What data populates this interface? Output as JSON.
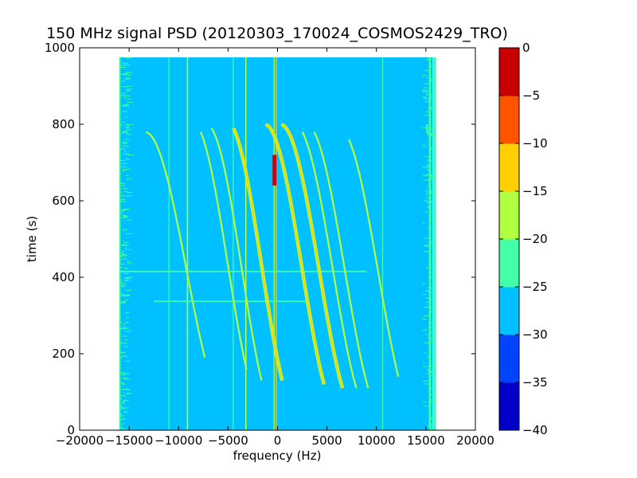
{
  "chart_data": {
    "type": "heatmap",
    "title": "150 MHz signal PSD (20120303_170024_COSMOS2429_TRO)",
    "xlabel": "frequency (Hz)",
    "ylabel": "time (s)",
    "xlim": [
      -20000,
      20000
    ],
    "ylim": [
      0,
      1000
    ],
    "xticks": [
      -20000,
      -15000,
      -10000,
      -5000,
      0,
      5000,
      10000,
      15000,
      20000
    ],
    "xtick_labels": [
      "−20000",
      "−15000",
      "−10000",
      "−5000",
      "0",
      "5000",
      "10000",
      "15000",
      "20000"
    ],
    "yticks": [
      0,
      200,
      400,
      600,
      800,
      1000
    ],
    "ytick_labels": [
      "0",
      "200",
      "400",
      "600",
      "800",
      "1000"
    ],
    "data_extent": {
      "x": [
        -16000,
        16000
      ],
      "y": [
        0,
        975
      ]
    },
    "background_level": -27.5,
    "colorbar": {
      "levels": [
        -40,
        -35,
        -30,
        -25,
        -20,
        -15,
        -10,
        -5,
        0
      ],
      "tick_labels": [
        "−40",
        "−35",
        "−30",
        "−25",
        "−20",
        "−15",
        "−10",
        "−5",
        "0"
      ],
      "colors": [
        "#0000c8",
        "#0044ff",
        "#00c0ff",
        "#44ffaa",
        "#b0ff40",
        "#ffd000",
        "#ff5500",
        "#c80000"
      ]
    },
    "vertical_lines": [
      {
        "freq": -15950,
        "width": 180,
        "level": -22.5
      },
      {
        "freq": -11000,
        "width": 40,
        "level": -22.5
      },
      {
        "freq": -9100,
        "width": 130,
        "level": -17.5
      },
      {
        "freq": -4500,
        "width": 40,
        "level": -22.5
      },
      {
        "freq": -3200,
        "width": 130,
        "level": -17.5
      },
      {
        "freq": -350,
        "width": 90,
        "level": -17.5
      },
      {
        "freq": -150,
        "width": 50,
        "level": -12.5
      },
      {
        "freq": 10600,
        "width": 40,
        "level": -22.5
      },
      {
        "freq": 15400,
        "width": 200,
        "level": -22.5
      },
      {
        "freq": 15800,
        "width": 300,
        "level": -22.5
      }
    ],
    "horizontal_streaks": [
      {
        "time": 415,
        "from": -16000,
        "to": 9000,
        "level": -22.5
      },
      {
        "time": 337,
        "from": -12500,
        "to": 3000,
        "level": -22.5
      }
    ],
    "tracks": [
      {
        "center_freq": -17500,
        "amplitude": 4700,
        "t_mid": 420,
        "half_span": 360,
        "t_start": 380,
        "t_end": 800,
        "level": -22.5
      },
      {
        "center_freq": -9200,
        "amplitude": 4200,
        "t_mid": 420,
        "half_span": 360,
        "t_start": 190,
        "t_end": 780,
        "level": -17.5
      },
      {
        "center_freq": -5000,
        "amplitude": 3700,
        "t_mid": 430,
        "half_span": 380,
        "t_start": 160,
        "t_end": 780,
        "level": -17.5
      },
      {
        "center_freq": -3600,
        "amplitude": 3600,
        "t_mid": 420,
        "half_span": 380,
        "t_start": 130,
        "t_end": 790,
        "level": -17.5
      },
      {
        "center_freq": -1600,
        "amplitude": 3600,
        "t_mid": 430,
        "half_span": 380,
        "t_start": 130,
        "t_end": 790,
        "level": -10
      },
      {
        "center_freq": 2500,
        "amplitude": 3800,
        "t_mid": 420,
        "half_span": 380,
        "t_start": 120,
        "t_end": 800,
        "level": -10
      },
      {
        "center_freq": 4200,
        "amplitude": 3900,
        "t_mid": 420,
        "half_span": 380,
        "t_start": 110,
        "t_end": 800,
        "level": -12.5
      },
      {
        "center_freq": 5600,
        "amplitude": 3900,
        "t_mid": 420,
        "half_span": 380,
        "t_start": 110,
        "t_end": 780,
        "level": -17.5
      },
      {
        "center_freq": 6800,
        "amplitude": 3900,
        "t_mid": 420,
        "half_span": 380,
        "t_start": 110,
        "t_end": 780,
        "level": -17.5
      },
      {
        "center_freq": 10200,
        "amplitude": 4000,
        "t_mid": 410,
        "half_span": 380,
        "t_start": 140,
        "t_end": 760,
        "level": -17.5
      },
      {
        "center_freq": 19500,
        "amplitude": 4500,
        "t_mid": 420,
        "half_span": 360,
        "t_start": 560,
        "t_end": 800,
        "level": -22.5
      }
    ],
    "hot_spot": {
      "freq_range": [
        -500,
        -100
      ],
      "time_range": [
        640,
        720
      ],
      "level": -2.5
    }
  }
}
